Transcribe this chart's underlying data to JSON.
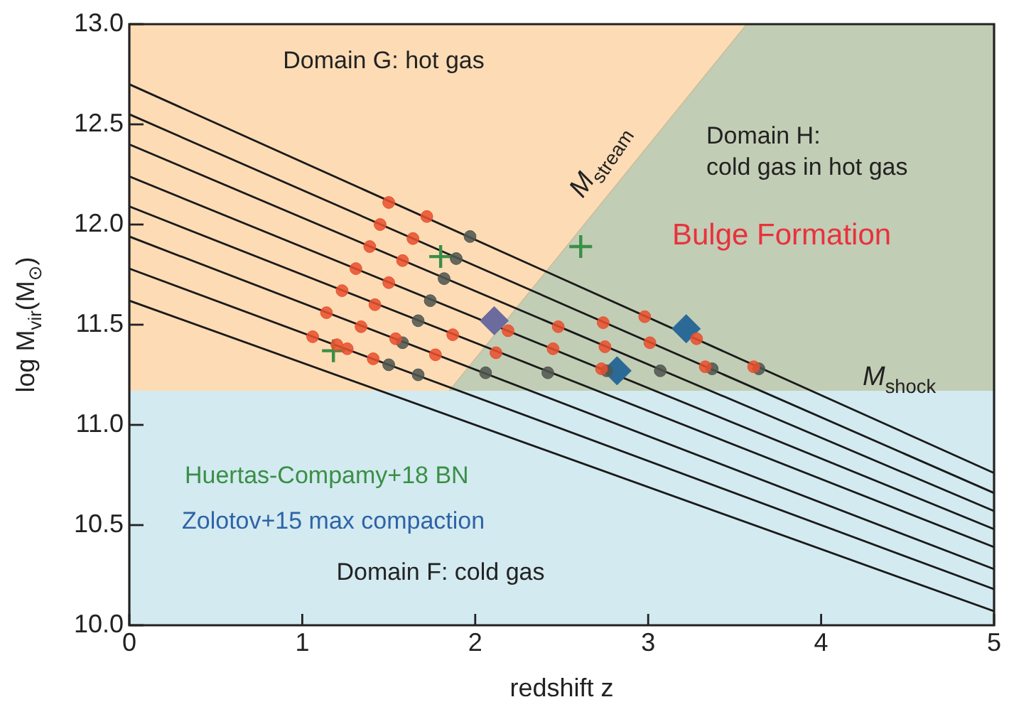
{
  "chart_data": {
    "type": "scatter",
    "xlabel": "redshift z",
    "ylabel": "log M$_{vir}$(M$_{⊙}$)",
    "xlim": [
      0,
      5
    ],
    "xticks": [
      0,
      1,
      2,
      3,
      4,
      5
    ],
    "ylim": [
      10,
      13
    ],
    "yticks": [
      {
        "value": 10,
        "label": "10.0"
      },
      {
        "value": 10.5,
        "label": "10.5"
      },
      {
        "value": 11,
        "label": "11.0"
      },
      {
        "value": 11.5,
        "label": "11.5"
      },
      {
        "value": 12,
        "label": "12.0"
      },
      {
        "value": 12.5,
        "label": "12.5"
      },
      {
        "value": 13,
        "label": "13.0"
      }
    ],
    "legend": false,
    "bands": [
      {
        "axis": "y",
        "from": 10,
        "to": 11.17,
        "label": "Domain F: cold gas",
        "color": "#d3eaf0"
      },
      {
        "axis": "y",
        "from": 11.17,
        "to": 13,
        "label": "Domain G: hot gas",
        "color": "#fddcb5"
      }
    ],
    "series": [
      {
        "type": "area",
        "name": "Domain H: cold gas in hot gas",
        "color": "#c2cdb5",
        "x": [
          1.85,
          3.57,
          5
        ],
        "values": [
          11.17,
          13,
          13
        ]
      },
      {
        "type": "line",
        "color": "#1a1a1a",
        "marker": "none",
        "x": [
          0,
          5
        ],
        "values": [
          12.7,
          10.76
        ]
      },
      {
        "type": "line",
        "color": "#1a1a1a",
        "marker": "none",
        "x": [
          0,
          5
        ],
        "values": [
          12.55,
          10.66
        ]
      },
      {
        "type": "line",
        "color": "#1a1a1a",
        "marker": "none",
        "x": [
          0,
          5
        ],
        "values": [
          12.4,
          10.57
        ]
      },
      {
        "type": "line",
        "color": "#1a1a1a",
        "marker": "none",
        "x": [
          0,
          5
        ],
        "values": [
          12.24,
          10.48
        ]
      },
      {
        "type": "line",
        "color": "#1a1a1a",
        "marker": "none",
        "x": [
          0,
          5
        ],
        "values": [
          12.09,
          10.39
        ]
      },
      {
        "type": "line",
        "color": "#1a1a1a",
        "marker": "none",
        "x": [
          0,
          5
        ],
        "values": [
          11.94,
          10.28
        ]
      },
      {
        "type": "line",
        "color": "#1a1a1a",
        "marker": "none",
        "x": [
          0,
          5
        ],
        "values": [
          11.78,
          10.18
        ]
      },
      {
        "type": "line",
        "color": "#1a1a1a",
        "marker": "none",
        "x": [
          0,
          5
        ],
        "values": [
          11.62,
          10.07
        ]
      },
      {
        "type": "scatter",
        "color": "#e8502e",
        "marker": "circle",
        "x": [
          1.5,
          1.45,
          1.39,
          1.31,
          1.23,
          1.14,
          1.06,
          1.2,
          1.72,
          1.64,
          1.58,
          1.5,
          1.42,
          1.34,
          1.26,
          1.41,
          1.54,
          1.77,
          1.87,
          2.19,
          2.12,
          2.48,
          2.45,
          2.74,
          2.98,
          3.28,
          3.01,
          2.75,
          3.33,
          3.61,
          2.73
        ],
        "values": [
          12.11,
          12.0,
          11.89,
          11.78,
          11.67,
          11.56,
          11.44,
          11.4,
          12.04,
          11.93,
          11.82,
          11.71,
          11.6,
          11.49,
          11.38,
          11.33,
          11.43,
          11.35,
          11.45,
          11.47,
          11.36,
          11.49,
          11.38,
          11.51,
          11.54,
          11.43,
          11.41,
          11.39,
          11.29,
          11.29,
          11.28
        ]
      },
      {
        "type": "scatter",
        "color": "#505550",
        "marker": "circle",
        "x": [
          1.97,
          1.89,
          1.82,
          1.74,
          1.67,
          1.58,
          1.5,
          1.67,
          2.06,
          2.42,
          2.76,
          3.07,
          3.37,
          3.64
        ],
        "values": [
          11.94,
          11.83,
          11.73,
          11.62,
          11.52,
          11.41,
          11.3,
          11.25,
          11.26,
          11.26,
          11.27,
          11.27,
          11.28,
          11.28
        ]
      },
      {
        "type": "scatter",
        "name": "Huertas-Compamy+18 BN",
        "color": "#3a8f47",
        "marker": "cross",
        "x": [
          1.8,
          2.61,
          1.18
        ],
        "values": [
          11.84,
          11.89,
          11.37
        ]
      },
      {
        "type": "scatter",
        "name": "Zolotov+15 max compaction",
        "color": "#2f63a8",
        "colors": [
          "#6b6b9e",
          "#2b6a96",
          "#2b6a96"
        ],
        "marker": "diamond",
        "x": [
          2.11,
          3.22,
          2.82
        ],
        "values": [
          11.52,
          11.48,
          11.27
        ]
      }
    ],
    "annotations": [
      "Bulge Formation",
      "M$_{stream}$",
      "M$_{shock}$"
    ]
  }
}
